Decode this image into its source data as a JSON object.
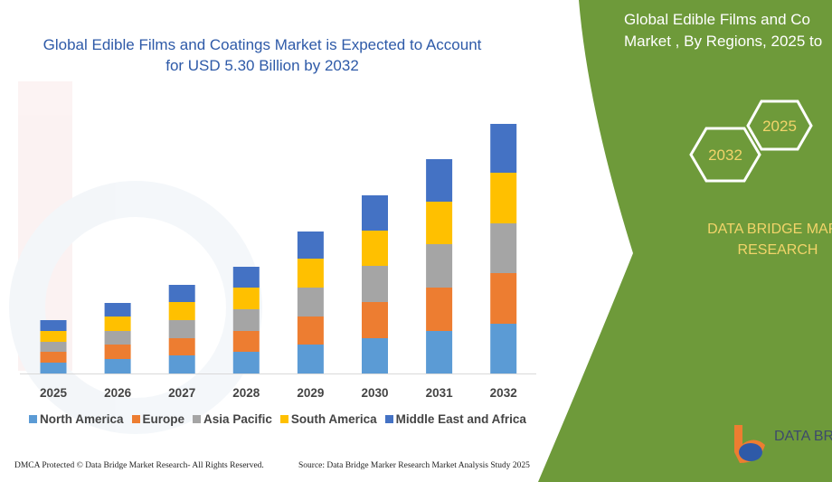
{
  "chart_data": {
    "type": "bar",
    "stacked": true,
    "title": "Global Edible Films and Coatings Market is Expected to Account for USD 5.30 Billion by 2032",
    "categories": [
      "2025",
      "2026",
      "2027",
      "2028",
      "2029",
      "2030",
      "2031",
      "2032"
    ],
    "series": [
      {
        "name": "North America",
        "color": "#5b9bd5",
        "values": [
          12,
          16,
          20,
          24,
          32,
          39,
          47,
          55
        ]
      },
      {
        "name": "Europe",
        "color": "#ed7d31",
        "values": [
          12,
          16,
          19,
          23,
          31,
          40,
          48,
          56
        ]
      },
      {
        "name": "Asia Pacific",
        "color": "#a5a5a5",
        "values": [
          11,
          15,
          20,
          24,
          32,
          40,
          48,
          55
        ]
      },
      {
        "name": "South America",
        "color": "#ffc000",
        "values": [
          12,
          16,
          20,
          24,
          32,
          39,
          47,
          56
        ]
      },
      {
        "name": "Middle East and Africa",
        "color": "#4472c4",
        "values": [
          12,
          15,
          19,
          23,
          30,
          39,
          47,
          54
        ]
      }
    ],
    "xlabel": "",
    "ylabel": "",
    "grid": false,
    "legend": "bottom"
  },
  "side_panel": {
    "title_line1": "Global Edible Films and Co",
    "title_line2": "Market , By Regions, 2025 to",
    "hex_labels": [
      "2025",
      "2032"
    ],
    "brand_line1": "DATA BRIDGE MARK",
    "brand_line2": "RESEARCH",
    "logo_text": "DATA BRI",
    "panel_color": "#6e9a3a",
    "brand_color": "#f2d46a"
  },
  "footer": {
    "left": "DMCA Protected © Data Bridge Market Research-  All Rights Reserved.",
    "right": "Source: Data Bridge Marker Research  Market Analysis Study 2025"
  }
}
